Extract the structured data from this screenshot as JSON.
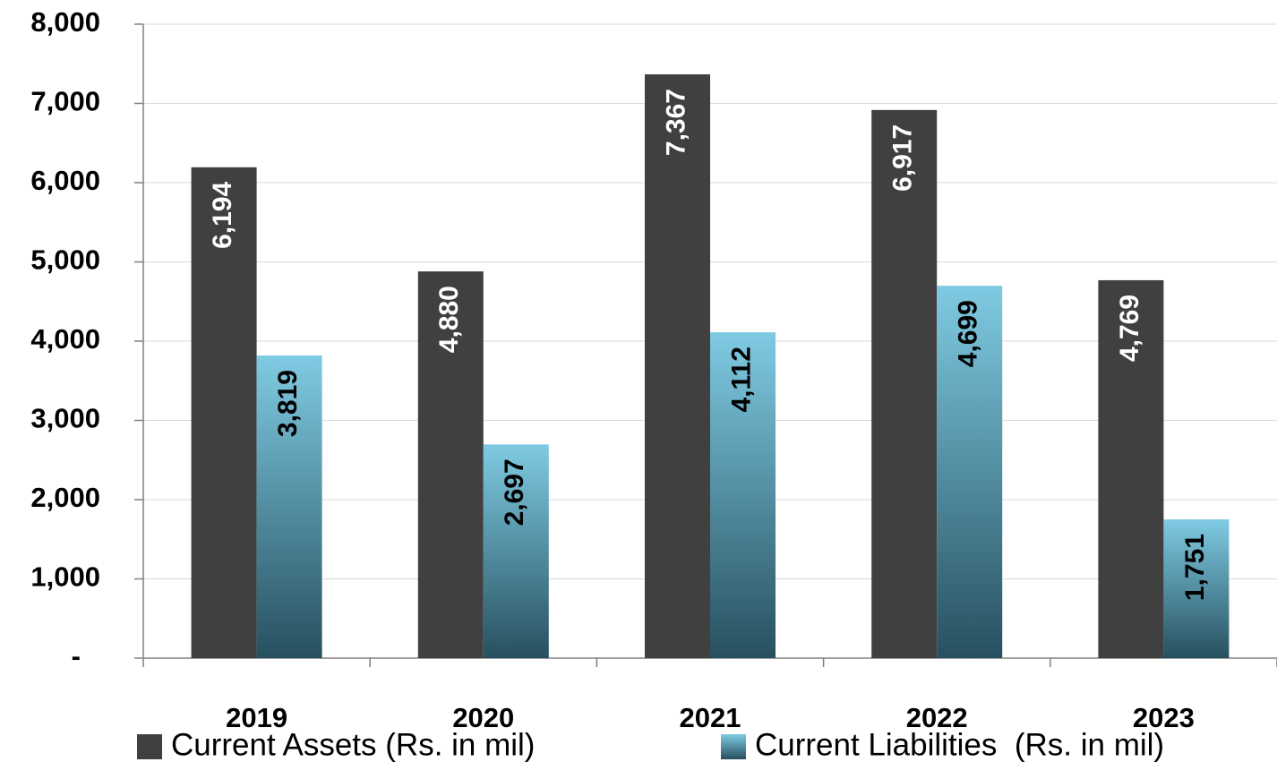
{
  "chart_data": {
    "type": "bar",
    "categories": [
      "2019",
      "2020",
      "2021",
      "2022",
      "2023"
    ],
    "series": [
      {
        "name": "Current Assets (Rs. in mil)",
        "color": "#404040",
        "values": [
          6194,
          4880,
          7367,
          6917,
          4769
        ],
        "value_labels": [
          "6,194",
          "4,880",
          "7,367",
          "6,917",
          "4,769"
        ]
      },
      {
        "name": "Current Liabilities  (Rs. in mil)",
        "color": "#7fcbe3",
        "values": [
          3819,
          2697,
          4112,
          4699,
          1751
        ],
        "value_labels": [
          "3,819",
          "2,697",
          "4,112",
          "4,699",
          "1,751"
        ]
      }
    ],
    "ylim": [
      0,
      8000
    ],
    "yticks": [
      {
        "value": 0,
        "label": "-"
      },
      {
        "value": 1000,
        "label": "1,000"
      },
      {
        "value": 2000,
        "label": "2,000"
      },
      {
        "value": 3000,
        "label": "3,000"
      },
      {
        "value": 4000,
        "label": "4,000"
      },
      {
        "value": 5000,
        "label": "5,000"
      },
      {
        "value": 6000,
        "label": "6,000"
      },
      {
        "value": 7000,
        "label": "7,000"
      },
      {
        "value": 8000,
        "label": "8,000"
      }
    ],
    "grid": true,
    "legend": "bottom"
  }
}
